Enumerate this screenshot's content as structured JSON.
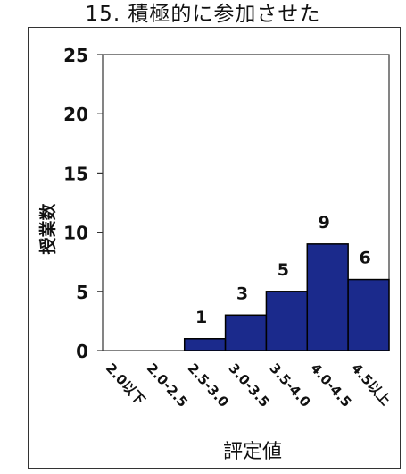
{
  "chart_data": {
    "type": "bar",
    "title": "15. 積極的に参加させた",
    "xlabel": "評定値",
    "ylabel": "授業数",
    "categories": [
      "2.0以下",
      "2.0-2.5",
      "2.5-3.0",
      "3.0-3.5",
      "3.5-4.0",
      "4.0-4.5",
      "4.5以上"
    ],
    "values": [
      0,
      0,
      1,
      3,
      5,
      9,
      6
    ],
    "data_labels": [
      "",
      "",
      "1",
      "3",
      "5",
      "9",
      "6"
    ],
    "ylim": [
      0,
      25
    ],
    "yticks": [
      "0",
      "5",
      "10",
      "15",
      "20",
      "25"
    ],
    "grid": false,
    "legend": "none",
    "colors": {
      "bar_fill": "#1b2a8c",
      "bar_edge": "#000000",
      "axis": "#333333",
      "text": "#111111",
      "background": "#ffffff"
    }
  }
}
